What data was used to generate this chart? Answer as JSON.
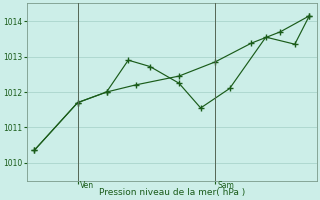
{
  "title": "",
  "xlabel": "Pression niveau de la mer( hPa )",
  "bg_color": "#cceee8",
  "grid_color": "#aad4cc",
  "line_color": "#1a5c1a",
  "ylim": [
    1009.5,
    1014.5
  ],
  "yticks": [
    1010,
    1011,
    1012,
    1013,
    1014
  ],
  "xlim": [
    0,
    20
  ],
  "ven_x": 3.5,
  "sam_x": 13.0,
  "s1_x": [
    0.5,
    3.5,
    5.5,
    7.0,
    8.5,
    10.5,
    12.0,
    14.0,
    16.5,
    18.5,
    19.5
  ],
  "s1_y": [
    1010.35,
    1011.7,
    1012.0,
    1012.9,
    1012.72,
    1012.25,
    1011.55,
    1012.1,
    1013.55,
    1013.35,
    1014.15
  ],
  "s2_x": [
    0.5,
    3.5,
    5.5,
    7.5,
    10.5,
    13.0,
    15.5,
    17.5,
    19.5
  ],
  "s2_y": [
    1010.35,
    1011.7,
    1012.0,
    1012.2,
    1012.45,
    1012.85,
    1013.38,
    1013.7,
    1014.15
  ]
}
